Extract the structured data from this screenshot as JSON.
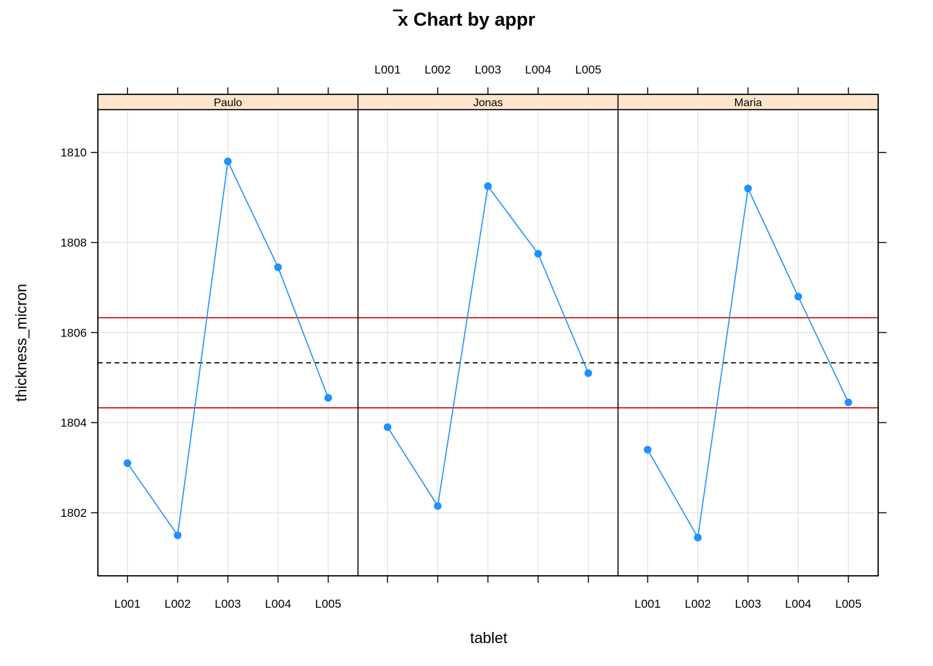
{
  "chart_data": {
    "type": "line",
    "title": "x Chart by appr",
    "title_overline_char": "x",
    "title_rest": " Chart by appr",
    "xlabel": "tablet",
    "ylabel": "thickness_micron",
    "categories": [
      "L001",
      "L002",
      "L003",
      "L004",
      "L005"
    ],
    "panels": [
      {
        "name": "Paulo",
        "values": [
          1803.1,
          1801.5,
          1809.8,
          1807.45,
          1804.55
        ]
      },
      {
        "name": "Jonas",
        "values": [
          1803.9,
          1802.15,
          1809.25,
          1807.75,
          1805.1
        ]
      },
      {
        "name": "Maria",
        "values": [
          1803.4,
          1801.45,
          1809.2,
          1806.8,
          1804.45
        ]
      }
    ],
    "center_line": 1805.33,
    "upper_limit": 1806.33,
    "lower_limit": 1804.33,
    "yticks": [
      1802,
      1804,
      1806,
      1808,
      1810
    ],
    "ylim": [
      1800.6,
      1810.95
    ],
    "grid": true,
    "colors": {
      "series": "#1E90FF",
      "limits": "#CC0000",
      "center": "#000000",
      "strip": "#FFE5CC",
      "grid": "#E6E6E6"
    }
  }
}
